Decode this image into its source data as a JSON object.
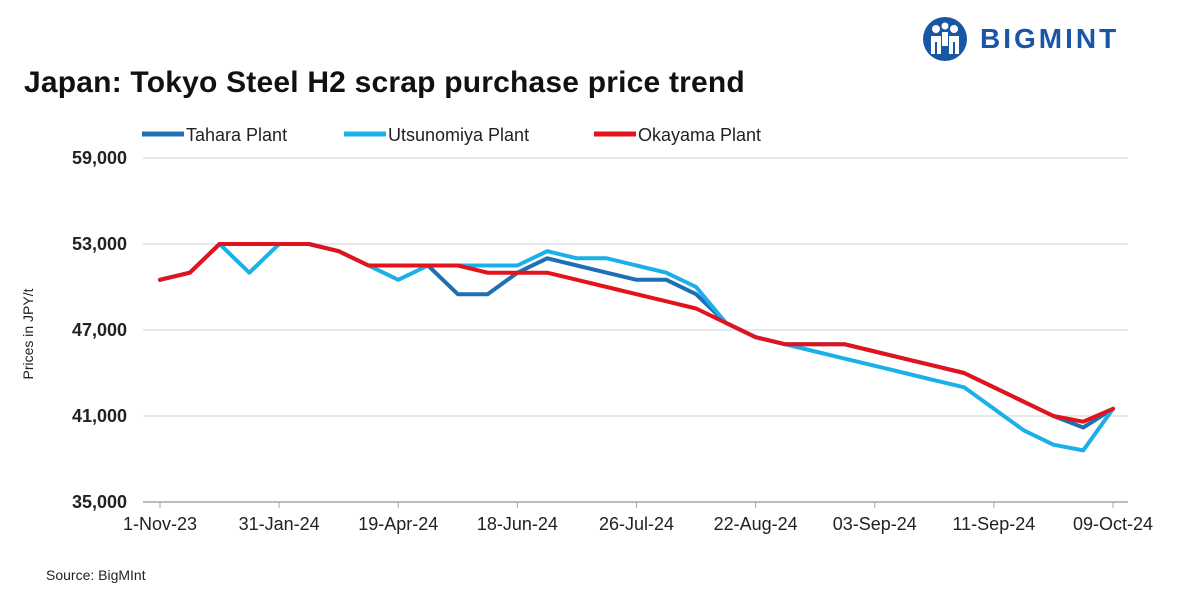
{
  "brand": {
    "name": "BIGMINT",
    "logo_color": "#1a56a6"
  },
  "source": "Source: BigMInt",
  "chart_data": {
    "type": "line",
    "title": "Japan: Tokyo Steel H2 scrap purchase price trend",
    "xlabel": "",
    "ylabel": "Prices in JPY/t",
    "ylim": [
      35000,
      59000
    ],
    "yticks": [
      35000,
      41000,
      47000,
      53000,
      59000
    ],
    "ytick_labels": [
      "35,000",
      "41,000",
      "47,000",
      "53,000",
      "59,000"
    ],
    "xtick_labels": [
      {
        "index": 0,
        "label": "1-Nov-23"
      },
      {
        "index": 4,
        "label": "31-Jan-24"
      },
      {
        "index": 8,
        "label": "19-Apr-24"
      },
      {
        "index": 12,
        "label": "18-Jun-24"
      },
      {
        "index": 16,
        "label": "26-Jul-24"
      },
      {
        "index": 20,
        "label": "22-Aug-24"
      },
      {
        "index": 24,
        "label": "03-Sep-24"
      },
      {
        "index": 28,
        "label": "11-Sep-24"
      },
      {
        "index": 32,
        "label": "09-Oct-24"
      }
    ],
    "grid": true,
    "legend_position": "top",
    "series": [
      {
        "name": "Tahara Plant",
        "color": "#1f6fb5",
        "values": [
          50500,
          51000,
          53000,
          53000,
          53000,
          53000,
          52500,
          51500,
          51500,
          51500,
          49500,
          49500,
          51000,
          52000,
          51500,
          51000,
          50500,
          50500,
          49500,
          47500,
          46500,
          46000,
          46000,
          46000,
          45500,
          45000,
          44500,
          44000,
          43000,
          42000,
          41000,
          40200,
          41500
        ]
      },
      {
        "name": "Utsunomiya Plant",
        "color": "#1cb0e8",
        "values": [
          50500,
          51000,
          53000,
          51000,
          53000,
          53000,
          52500,
          51500,
          50500,
          51500,
          51500,
          51500,
          51500,
          52500,
          52000,
          52000,
          51500,
          51000,
          50000,
          47500,
          46500,
          46000,
          45500,
          45000,
          44500,
          44000,
          43500,
          43000,
          41500,
          40000,
          39000,
          38600,
          41500
        ]
      },
      {
        "name": "Okayama Plant",
        "color": "#e3121b",
        "values": [
          50500,
          51000,
          53000,
          53000,
          53000,
          53000,
          52500,
          51500,
          51500,
          51500,
          51500,
          51000,
          51000,
          51000,
          50500,
          50000,
          49500,
          49000,
          48500,
          47500,
          46500,
          46000,
          46000,
          46000,
          45500,
          45000,
          44500,
          44000,
          43000,
          42000,
          41000,
          40600,
          41500
        ]
      }
    ]
  }
}
